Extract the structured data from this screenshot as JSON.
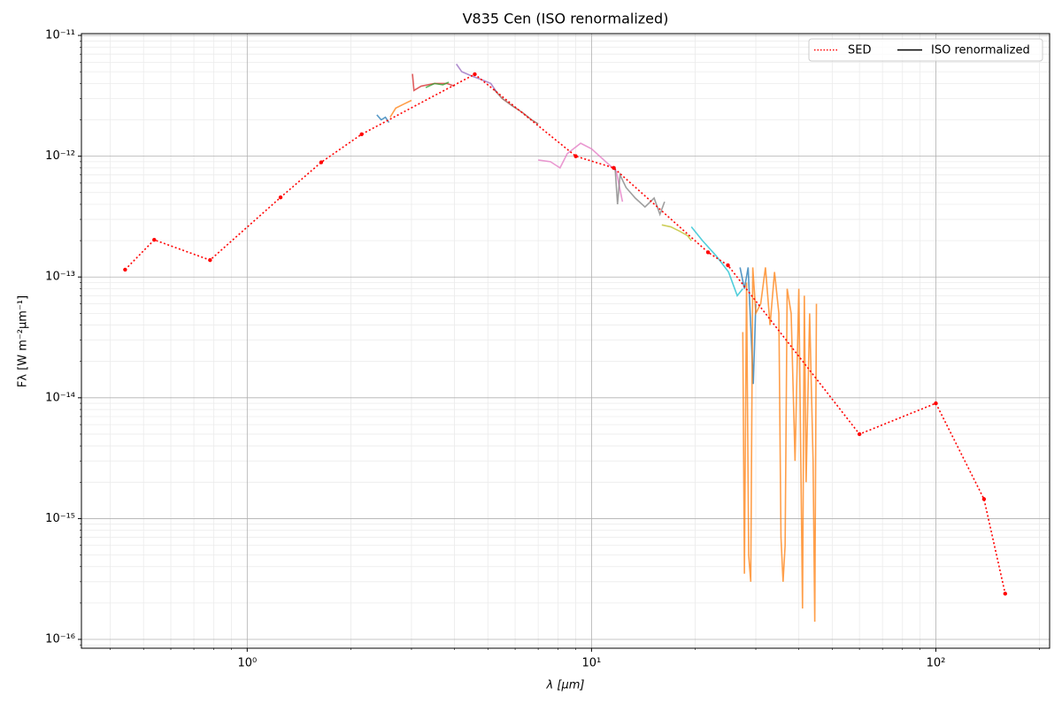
{
  "chart_data": {
    "type": "line",
    "title": "V835 Cen (ISO renormalized)",
    "xlabel": "λ [μm]",
    "ylabel": "Fλ [W m⁻²μm⁻¹]",
    "xscale": "log",
    "yscale": "log",
    "xlim": [
      0.33,
      214
    ],
    "ylim": [
      8.45e-17,
      1.035e-11
    ],
    "xticks": [
      {
        "value": 1,
        "label": "10⁰"
      },
      {
        "value": 10,
        "label": "10¹"
      },
      {
        "value": 100,
        "label": "10²"
      }
    ],
    "yticks": [
      {
        "value": 1e-16,
        "label": "10⁻¹⁶"
      },
      {
        "value": 1e-15,
        "label": "10⁻¹⁵"
      },
      {
        "value": 1e-14,
        "label": "10⁻¹⁴"
      },
      {
        "value": 1e-13,
        "label": "10⁻¹³"
      },
      {
        "value": 1e-12,
        "label": "10⁻¹²"
      },
      {
        "value": 1e-11,
        "label": "10⁻¹¹"
      }
    ],
    "grid": true,
    "minor_grid": true,
    "legend": "upper right",
    "series": [
      {
        "name": "SED",
        "color": "#ff0000",
        "style": "dotted",
        "x": [
          0.442,
          0.537,
          0.78,
          1.25,
          1.64,
          2.15,
          4.58,
          9.0,
          11.6,
          21.8,
          24.9,
          60,
          100,
          138,
          159
        ],
        "values": [
          1.15e-13,
          2.03e-13,
          1.38e-13,
          4.56e-13,
          8.9e-13,
          1.52e-12,
          4.77e-12,
          1e-12,
          8e-13,
          1.6e-13,
          1.25e-13,
          5e-15,
          9e-15,
          1.45e-15,
          2.39e-16
        ]
      }
    ],
    "iso": {
      "name": "ISO renormalized",
      "color": "#000000",
      "segments": [
        {
          "color": "#1f77b4",
          "x": [
            2.38,
            2.45,
            2.52,
            2.58
          ],
          "values": [
            2.2e-12,
            2e-12,
            2.1e-12,
            1.9e-12
          ]
        },
        {
          "color": "#ff7f0e",
          "x": [
            2.6,
            2.7,
            2.85,
            3.0
          ],
          "values": [
            2.1e-12,
            2.5e-12,
            2.7e-12,
            2.9e-12
          ]
        },
        {
          "color": "#d62728",
          "x": [
            3.02,
            3.05,
            3.2,
            3.5,
            3.8,
            4.0
          ],
          "values": [
            4.8e-12,
            3.5e-12,
            3.8e-12,
            4e-12,
            4e-12,
            3.8e-12
          ]
        },
        {
          "color": "#2ca02c",
          "x": [
            3.3,
            3.5,
            3.7,
            3.85
          ],
          "values": [
            3.7e-12,
            4e-12,
            3.9e-12,
            4.1e-12
          ]
        },
        {
          "color": "#9467bd",
          "x": [
            4.05,
            4.2,
            4.5,
            4.8,
            5.1,
            5.3
          ],
          "values": [
            5.8e-12,
            5e-12,
            4.6e-12,
            4.3e-12,
            4e-12,
            3.4e-12
          ]
        },
        {
          "color": "#8c564b",
          "x": [
            5.2,
            5.5,
            5.9,
            6.3,
            6.7,
            7.0
          ],
          "values": [
            3.6e-12,
            3e-12,
            2.6e-12,
            2.3e-12,
            2e-12,
            1.85e-12
          ]
        },
        {
          "color": "#e377c2",
          "x": [
            7.0,
            7.6,
            8.1,
            8.5,
            9.3,
            10,
            11,
            11.8,
            12.3
          ],
          "values": [
            9.3e-13,
            9e-13,
            8e-13,
            1.05e-12,
            1.28e-12,
            1.15e-12,
            9e-13,
            7.5e-13,
            4.2e-13
          ]
        },
        {
          "color": "#7f7f7f",
          "x": [
            11.7,
            11.9,
            12.1,
            12.6,
            13.4,
            14.3,
            15.2,
            15.8,
            16.3
          ],
          "values": [
            8.2e-13,
            4e-13,
            7e-13,
            5.5e-13,
            4.5e-13,
            3.8e-13,
            4.5e-13,
            3.3e-13,
            4.2e-13
          ]
        },
        {
          "color": "#bcbd22",
          "x": [
            16,
            17,
            18,
            19,
            19.5
          ],
          "values": [
            2.7e-13,
            2.6e-13,
            2.4e-13,
            2.2e-13,
            2e-13
          ]
        },
        {
          "color": "#17becf",
          "x": [
            19.5,
            21,
            23,
            25,
            26.5,
            27.5
          ],
          "values": [
            2.6e-13,
            2e-13,
            1.5e-13,
            1.1e-13,
            7e-14,
            8e-14
          ]
        },
        {
          "color": "#1f77b4",
          "x": [
            27,
            27.8,
            28.5,
            29.5,
            30
          ],
          "values": [
            1.2e-13,
            8e-14,
            1.2e-13,
            1.3e-14,
            6e-14
          ]
        },
        {
          "color": "#ff7f0e",
          "x": [
            27.5,
            27.8,
            28.2,
            28.6,
            29,
            29.4,
            30,
            31,
            32,
            33,
            34,
            35,
            35.5,
            36,
            36.5,
            37,
            38,
            39,
            40,
            41,
            41.5,
            42,
            43,
            44,
            44.5,
            45
          ],
          "values": [
            3.5e-14,
            3.5e-16,
            9e-14,
            5e-16,
            3e-16,
            1.2e-13,
            5e-14,
            6e-14,
            1.2e-13,
            4e-14,
            1.1e-13,
            5e-14,
            7e-16,
            3e-16,
            6e-16,
            8e-14,
            5e-14,
            3e-15,
            8e-14,
            1.8e-16,
            7e-14,
            2e-15,
            5e-14,
            3e-15,
            1.4e-16,
            6e-14
          ]
        }
      ]
    }
  }
}
